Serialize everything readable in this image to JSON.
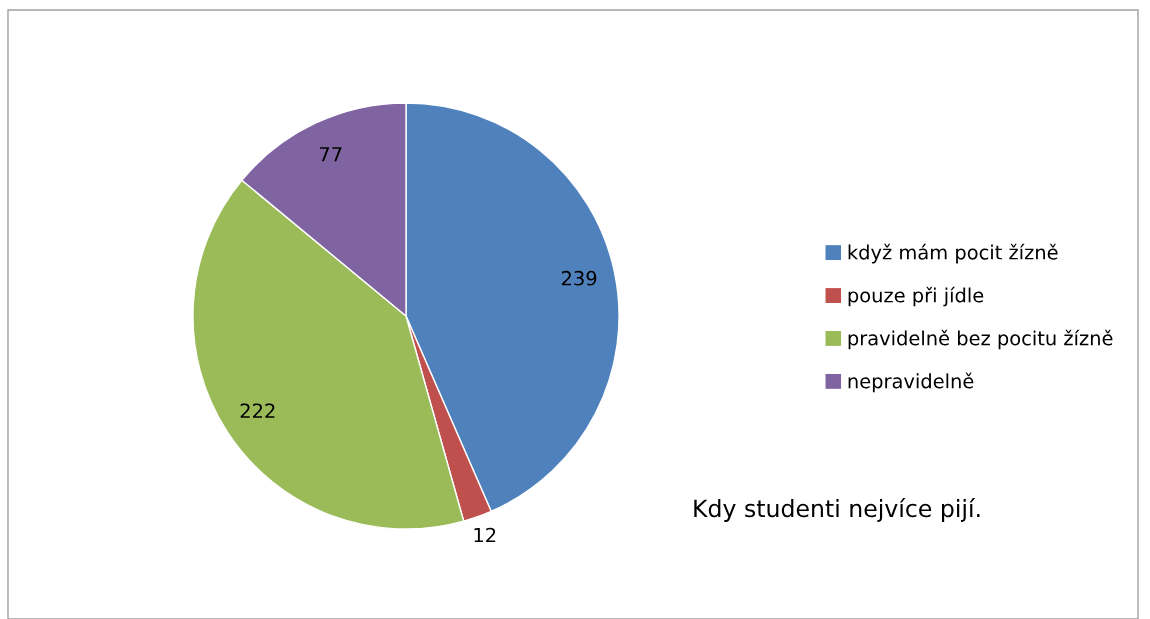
{
  "chart_data": {
    "type": "pie",
    "categories": [
      "když mám pocit žízně",
      "pouze při jídle",
      "pravidelně bez pocitu žízně",
      "nepravidelně"
    ],
    "values": [
      239,
      12,
      222,
      77
    ],
    "colors": [
      "#4f81bd",
      "#c0504d",
      "#9bbb59",
      "#8064a2"
    ],
    "data_labels": true,
    "legend": "right",
    "annotations": [
      "Kdy studenti nejvíce pijí."
    ]
  }
}
